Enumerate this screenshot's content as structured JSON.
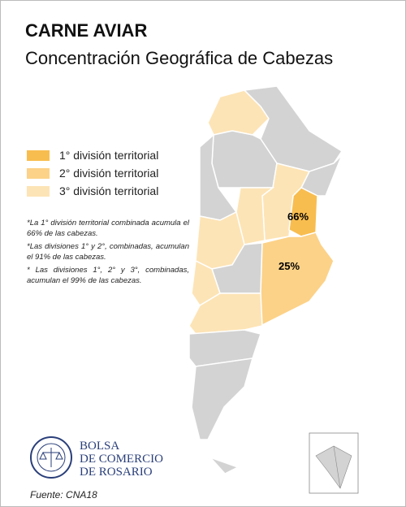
{
  "header": {
    "title": "CARNE AVIAR",
    "subtitle": "Concentración Geográfica de Cabezas"
  },
  "legend": [
    {
      "label": "1° división territorial",
      "color": "#f8bd4f"
    },
    {
      "label": "2° división territorial",
      "color": "#fcd288"
    },
    {
      "label": "3° división territorial",
      "color": "#fde4b6"
    }
  ],
  "notes": [
    "*La 1° división territorial combinada acumula el 66% de las cabezas.",
    "*Las divisiones 1° y 2°, combinadas, acumulan el 91% de las cabezas.",
    "* Las divisiones 1°, 2° y 3°, combinadas, acumulan el 99% de las cabezas."
  ],
  "map": {
    "labels": [
      "66%",
      "25%"
    ]
  },
  "logo": {
    "lines": [
      "BOLSA",
      "DE COMERCIO",
      "DE ROSARIO"
    ]
  },
  "source": "Fuente: CNA18"
}
